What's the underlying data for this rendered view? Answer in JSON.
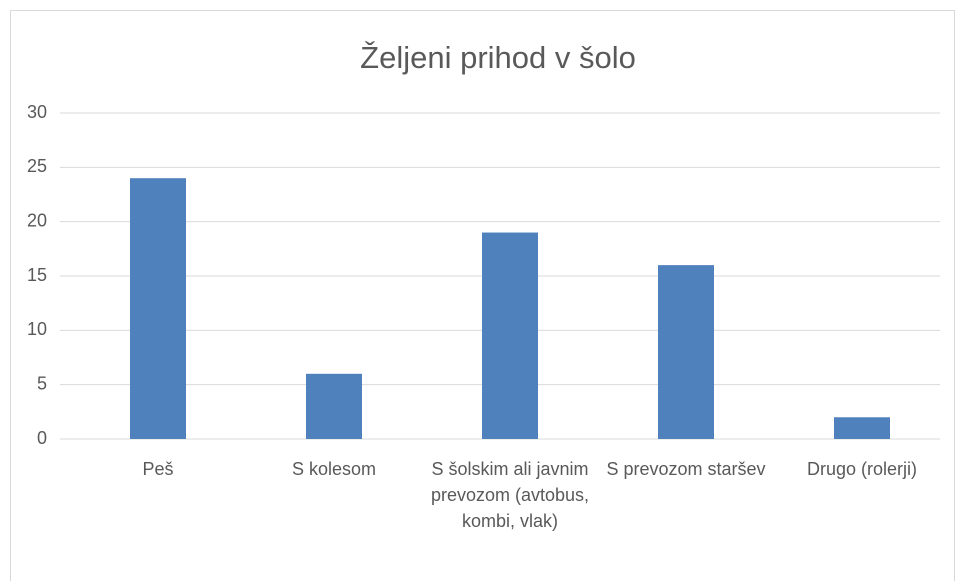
{
  "chart_data": {
    "type": "bar",
    "title": "Željeni prihod v šolo",
    "categories": [
      "Peš",
      "S kolesom",
      "S šolskim ali javnim prevozom (avtobus, kombi, vlak)",
      "S prevozom staršev",
      "Drugo (rolerji)"
    ],
    "values": [
      24,
      6,
      19,
      16,
      2
    ],
    "color": "#4f81bd",
    "ylim": [
      0,
      30
    ],
    "yticks": [
      0,
      5,
      10,
      15,
      20,
      25,
      30
    ],
    "grid": true
  }
}
